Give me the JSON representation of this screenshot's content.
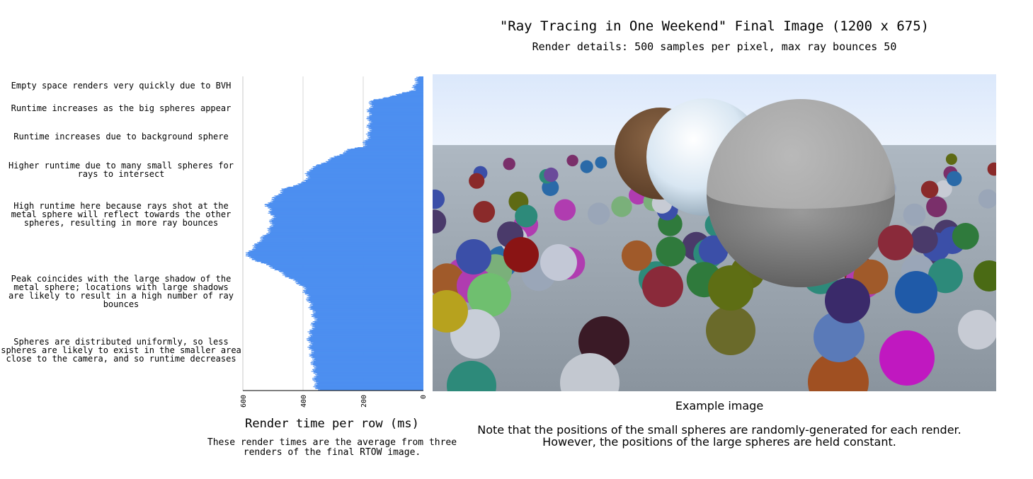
{
  "header": {
    "title": "\"Ray Tracing in One Weekend\" Final Image (1200 x 675)",
    "subtitle": "Render details: 500 samples per pixel, max ray bounces 50"
  },
  "chart_data": {
    "type": "bar",
    "orientation": "horizontal",
    "xlabel": "Render time per row (ms)",
    "x_axis_reversed": true,
    "xlim": [
      0,
      600
    ],
    "xticks": [
      "600",
      "400",
      "200",
      "0"
    ],
    "grid": "vertical lines at 200 and 400",
    "bar_color": "#4d8ff0",
    "note": "These render times are the average from three renders of the final RTOW image.",
    "rows": 675,
    "profile_row_index": [
      0,
      10,
      28,
      33,
      40,
      50,
      75,
      125,
      150,
      155,
      200,
      225,
      240,
      275,
      300,
      330,
      350,
      385,
      410,
      450,
      480,
      520,
      560,
      600,
      640,
      660,
      674
    ],
    "profile_ms": [
      15,
      25,
      30,
      60,
      90,
      170,
      180,
      180,
      200,
      240,
      380,
      390,
      460,
      520,
      500,
      510,
      540,
      590,
      500,
      400,
      380,
      360,
      380,
      370,
      360,
      360,
      350
    ],
    "annotations": [
      "Empty space renders very quickly due to BVH",
      "Runtime increases as the big spheres appear",
      "Runtime increases due to background sphere",
      "Higher runtime due to many small spheres for\nrays to intersect",
      "High runtime here because rays shot at the\nmetal sphere will reflect towards the other\nspheres, resulting in more ray bounces",
      "Peak coincides with the large shadow of the\nmetal sphere; locations with large shadows\nare likely to result in a high number of ray\nbounces",
      "Spheres are distributed uniformly, so less\nspheres are likely to exist in the smaller area\nclose to the camera, and so runtime decreases"
    ]
  },
  "image_panel": {
    "caption": "Example image",
    "note": "Note that the positions of the small spheres are randomly-generated for each render.\nHowever, the positions of the large spheres are held constant."
  }
}
